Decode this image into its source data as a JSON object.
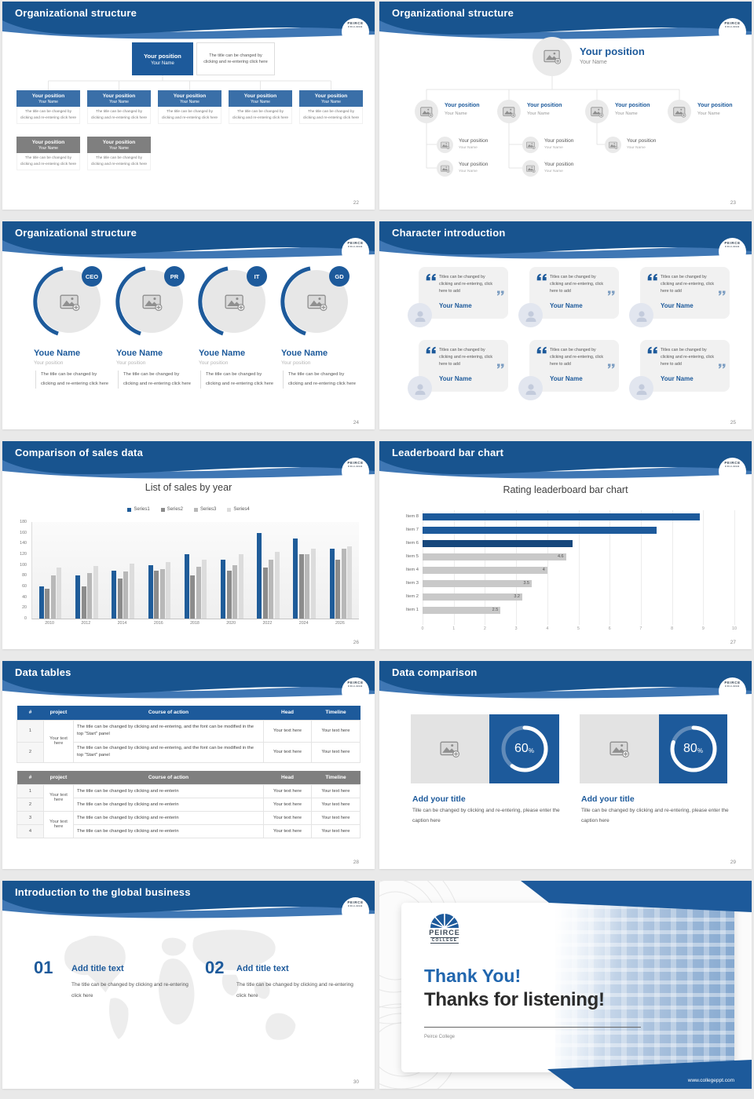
{
  "theme": {
    "primary": "#1d5a9b",
    "header_dark": "#18548f",
    "header_mid": "#3f77b4",
    "node_blue": "#3a6fa8",
    "node_gray": "#7f7f7f",
    "text_gray": "#555555"
  },
  "logo": {
    "top": "PEIRCE",
    "bottom": "COLLEGE"
  },
  "shared": {
    "position": "Your position",
    "name": "Your Name",
    "desc": "The title can be changed by clicking and re-entering click here"
  },
  "slides": {
    "org22": {
      "title": "Organizational structure",
      "page": "22"
    },
    "org23": {
      "title": "Organizational structure",
      "page": "23"
    },
    "org24": {
      "title": "Organizational structure",
      "page": "24",
      "badges": [
        "CEO",
        "PR",
        "IT",
        "GD"
      ],
      "person_name": "Youe Name",
      "person_position": "Your position"
    },
    "char25": {
      "title": "Character introduction",
      "page": "25",
      "quote": "Titles can be changed by clicking and re-entering, click here to add",
      "person_name": "Your Name"
    },
    "sales26": {
      "title": "Comparison of sales data",
      "page": "26"
    },
    "leader27": {
      "title": "Leaderboard bar chart",
      "page": "27"
    },
    "tables28": {
      "title": "Data tables",
      "page": "28",
      "headers": [
        "#",
        "project",
        "Course of action",
        "Head",
        "Timeline"
      ],
      "t1": {
        "rows": [
          "1",
          "2"
        ],
        "project": "Your text here",
        "course": "The title can be changed by clicking and re-entering, and the font can be modified in the top \"Start\" panel",
        "cell": "Your text here"
      },
      "t2": {
        "rows": [
          "1",
          "2",
          "3",
          "4"
        ],
        "project": "Your text here",
        "course": "The title can be changed by clicking and re-enterin",
        "cell": "Your text here"
      }
    },
    "comp29": {
      "title": "Data comparison",
      "page": "29",
      "cards": [
        {
          "pct": "60"
        },
        {
          "pct": "80"
        }
      ],
      "card_title": "Add your title",
      "caption": "Tille can be changed by clicking and re-entering, please enter the caption here"
    },
    "global30": {
      "title": "Introduction to the global business",
      "page": "30",
      "items": [
        {
          "num": "01"
        },
        {
          "num": "02"
        }
      ],
      "item_title": "Add title text",
      "item_desc": "The title can be changed by clicking and re-entering click here"
    },
    "thanks": {
      "heading1": "Thank You!",
      "heading2": "Thanks for listening!",
      "org": "Peirce College",
      "url": "www.collegeppt.com"
    }
  },
  "chart_data": [
    {
      "type": "bar",
      "title": "List of sales by year",
      "categories": [
        "2010",
        "2012",
        "2014",
        "2016",
        "2018",
        "2020",
        "2022",
        "2024",
        "2026"
      ],
      "series": [
        {
          "name": "Series1",
          "color": "#1f5c99",
          "values": [
            60,
            80,
            90,
            100,
            120,
            110,
            160,
            150,
            130
          ]
        },
        {
          "name": "Series2",
          "color": "#8c8c8c",
          "values": [
            55,
            60,
            75,
            90,
            80,
            90,
            95,
            120,
            110
          ]
        },
        {
          "name": "Series3",
          "color": "#b8b8b8",
          "values": [
            80,
            85,
            88,
            92,
            97,
            100,
            110,
            120,
            130
          ]
        },
        {
          "name": "Series4",
          "color": "#dcdcdc",
          "values": [
            95,
            98,
            102,
            105,
            110,
            120,
            125,
            130,
            135
          ]
        }
      ],
      "ylim": [
        0,
        180
      ],
      "ytick_step": 20,
      "legend_position": "top",
      "grid": false
    },
    {
      "type": "bar-horizontal",
      "title": "Rating leaderboard bar chart",
      "categories": [
        "Item 1",
        "Item 2",
        "Item 3",
        "Item 4",
        "Item 5",
        "Item 6",
        "Item 7",
        "Item 8"
      ],
      "values": [
        2.5,
        3.2,
        3.5,
        4,
        4.6,
        4.8,
        7.5,
        8.9
      ],
      "value_labels": [
        "2.5",
        "3.2",
        "3.5",
        "4",
        "4.6",
        "",
        "",
        ""
      ],
      "colors": [
        "#c9c9c9",
        "#c9c9c9",
        "#c9c9c9",
        "#c9c9c9",
        "#c9c9c9",
        "#16477c",
        "#1d5a9b",
        "#1d5a9b"
      ],
      "xlim": [
        0,
        10
      ],
      "xtick_step": 1,
      "grid": true,
      "legend_position": "none"
    }
  ]
}
